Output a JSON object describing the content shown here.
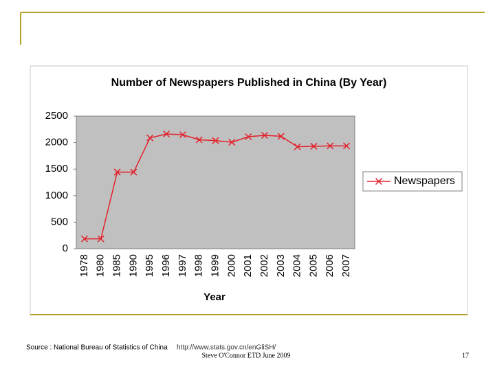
{
  "chart_data": {
    "type": "line",
    "title": "Number of Newspapers Published in China (By Year)",
    "x_label": "Year",
    "categories": [
      "1978",
      "1980",
      "1985",
      "1990",
      "1995",
      "1996",
      "1997",
      "1998",
      "1999",
      "2000",
      "2001",
      "2002",
      "2003",
      "2004",
      "2005",
      "2006",
      "2007"
    ],
    "series": [
      {
        "name": "Newspapers",
        "color": "#e3202b",
        "values": [
          186,
          186,
          1445,
          1444,
          2089,
          2163,
          2149,
          2053,
          2038,
          2007,
          2111,
          2137,
          2119,
          1922,
          1931,
          1938,
          1938
        ]
      }
    ],
    "ylim": [
      0,
      2500
    ],
    "yticks": [
      0,
      500,
      1000,
      1500,
      2000,
      2500
    ],
    "grid": false,
    "legend": "right",
    "plot_background": "#c0c0c0"
  },
  "footer": {
    "source": "Source : National Bureau of Statistics of China",
    "url": "http://www.stats.gov.cn/enGliSH/",
    "author": "Steve O'Connor ETD June 2009",
    "page": "17"
  }
}
